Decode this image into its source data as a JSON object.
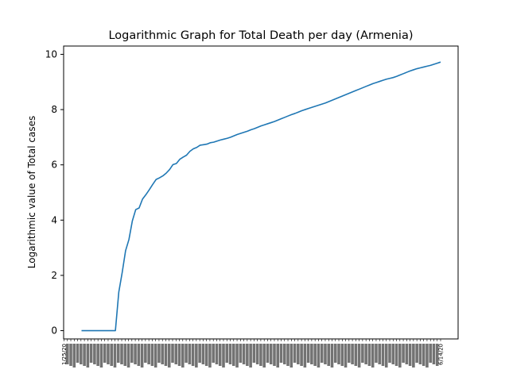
{
  "chart_data": {
    "type": "line",
    "title": "Logarithmic Graph for Total Death per day (Armenia)",
    "xlabel": "",
    "ylabel": "Logarithmic value of Total cases",
    "ylim": [
      -0.3,
      10.3
    ],
    "yticks": [
      0,
      2,
      4,
      6,
      8,
      10
    ],
    "grid": false,
    "legend": "none",
    "line_color": "#1f77b4",
    "x_first": "1/25/20",
    "x_last": "6/14/20",
    "x_tick_count": 112,
    "series": [
      {
        "values": [
          0,
          0,
          0,
          0,
          0,
          0,
          0,
          0,
          0,
          0,
          0,
          1.39,
          2.1,
          2.89,
          3.3,
          3.97,
          4.38,
          4.44,
          4.76,
          4.92,
          5.1,
          5.29,
          5.47,
          5.53,
          5.6,
          5.7,
          5.83,
          6.01,
          6.05,
          6.2,
          6.28,
          6.35,
          6.49,
          6.58,
          6.63,
          6.71,
          6.73,
          6.75,
          6.8,
          6.82,
          6.86,
          6.9,
          6.93,
          6.96,
          7.0,
          7.05,
          7.1,
          7.14,
          7.18,
          7.22,
          7.27,
          7.31,
          7.36,
          7.41,
          7.45,
          7.49,
          7.53,
          7.57,
          7.62,
          7.67,
          7.72,
          7.77,
          7.82,
          7.86,
          7.91,
          7.96,
          8.0,
          8.04,
          8.08,
          8.12,
          8.16,
          8.2,
          8.24,
          8.29,
          8.34,
          8.39,
          8.44,
          8.49,
          8.54,
          8.59,
          8.64,
          8.69,
          8.74,
          8.79,
          8.84,
          8.89,
          8.94,
          8.98,
          9.02,
          9.06,
          9.1,
          9.13,
          9.16,
          9.2,
          9.25,
          9.3,
          9.35,
          9.4,
          9.44,
          9.48,
          9.51,
          9.54,
          9.57,
          9.6,
          9.64,
          9.68,
          9.72
        ]
      }
    ]
  }
}
